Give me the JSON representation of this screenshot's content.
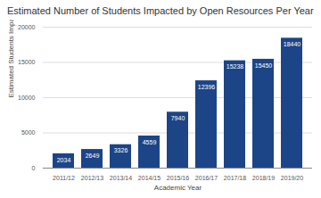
{
  "chart_data": {
    "type": "bar",
    "title": "Estimated Number of Students Impacted by Open Resources Per Year",
    "x_label": "Academic Year",
    "y_label": "Estimated Students Impacted",
    "categories": [
      "2011/12",
      "2012/13",
      "2013/14",
      "2014/15",
      "2015/16",
      "2016/17",
      "2017/18",
      "2018/19",
      "2019/20"
    ],
    "values": [
      2034,
      2649,
      3326,
      4559,
      7940,
      12396,
      15238,
      15450,
      18440
    ],
    "color": "#1c4587",
    "ylim": [
      0,
      20000
    ],
    "yticks": [
      0,
      5000,
      10000,
      15000,
      20000
    ],
    "grid": true,
    "data_labels": true
  }
}
